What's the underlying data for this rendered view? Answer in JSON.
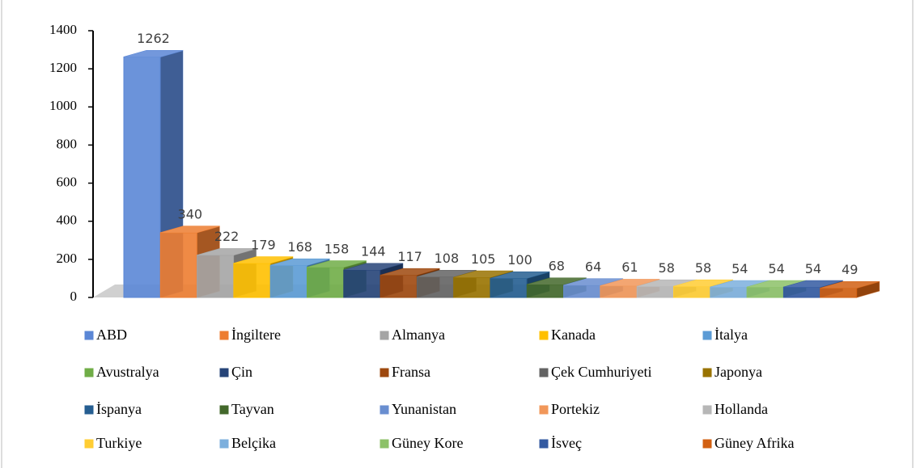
{
  "chart_data": {
    "type": "bar",
    "ylim": [
      0,
      1400
    ],
    "yticks": [
      0,
      200,
      400,
      600,
      800,
      1000,
      1200,
      1400
    ],
    "series": [
      {
        "name": "ABD",
        "color": "#5b87d6",
        "values": [
          1262
        ]
      },
      {
        "name": "İngiltere",
        "color": "#ed7d31",
        "values": [
          340
        ]
      },
      {
        "name": "Almanya",
        "color": "#a5a5a5",
        "values": [
          222
        ]
      },
      {
        "name": "Kanada",
        "color": "#ffc000",
        "values": [
          179
        ]
      },
      {
        "name": "İtalya",
        "color": "#5b9bd5",
        "values": [
          168
        ]
      },
      {
        "name": "Avustralya",
        "color": "#70ad47",
        "values": [
          158
        ]
      },
      {
        "name": "Çin",
        "color": "#264478",
        "values": [
          144
        ]
      },
      {
        "name": "Fransa",
        "color": "#9e480e",
        "values": [
          117
        ]
      },
      {
        "name": "Çek Cumhuriyeti",
        "color": "#636363",
        "values": [
          108
        ]
      },
      {
        "name": "Japonya",
        "color": "#997300",
        "values": [
          105
        ]
      },
      {
        "name": "İspanya",
        "color": "#255e91",
        "values": [
          100
        ]
      },
      {
        "name": "Tayvan",
        "color": "#43682b",
        "values": [
          68
        ]
      },
      {
        "name": "Yunanistan",
        "color": "#698ed0",
        "values": [
          64
        ]
      },
      {
        "name": "Portekiz",
        "color": "#f1975a",
        "values": [
          61
        ]
      },
      {
        "name": "Hollanda",
        "color": "#b7b7b7",
        "values": [
          58
        ]
      },
      {
        "name": "Turkiye",
        "color": "#ffcd33",
        "values": [
          58
        ]
      },
      {
        "name": "Belçika",
        "color": "#7cafdd",
        "values": [
          54
        ]
      },
      {
        "name": "Güney Kore",
        "color": "#8cc168",
        "values": [
          54
        ]
      },
      {
        "name": "İsveç",
        "color": "#335aa1",
        "values": [
          54
        ]
      },
      {
        "name": "Güney Afrika",
        "color": "#d26012",
        "values": [
          49
        ]
      }
    ]
  }
}
